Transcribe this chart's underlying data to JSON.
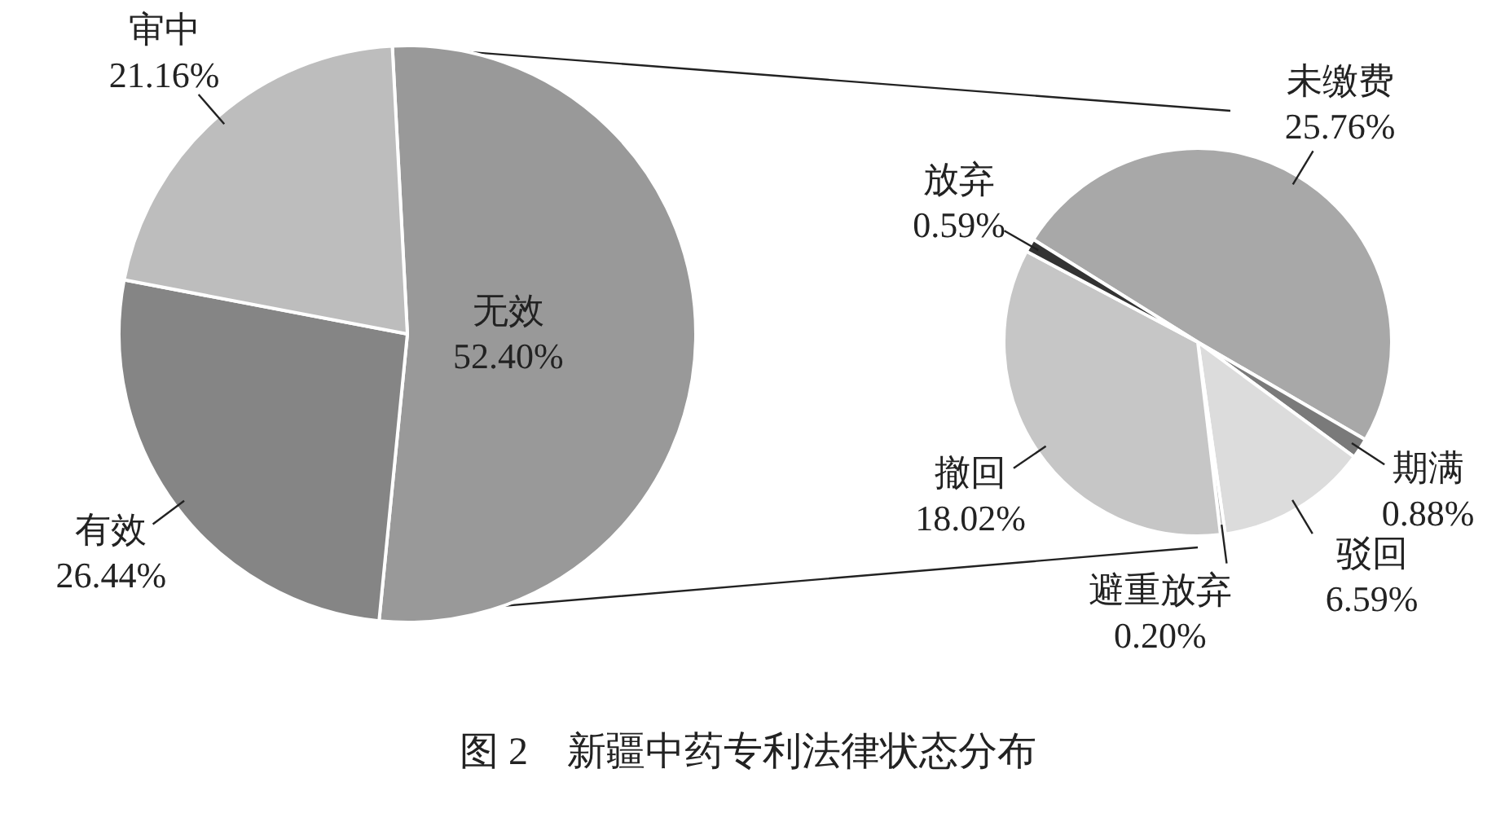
{
  "chart_data": [
    {
      "type": "pie",
      "title": "图 2　新疆中药专利法律状态分布",
      "categories": [
        "无效",
        "有效",
        "审中"
      ],
      "values": [
        52.4,
        26.44,
        21.16
      ],
      "colors": [
        "#999999",
        "#858585",
        "#bdbdbd"
      ],
      "value_labels": [
        "52.40%",
        "26.44%",
        "21.16%"
      ],
      "legend": false
    },
    {
      "type": "pie",
      "categories": [
        "未缴费",
        "期满",
        "驳回",
        "避重放弃",
        "撤回",
        "放弃"
      ],
      "values": [
        25.76,
        0.88,
        6.59,
        0.2,
        18.02,
        0.59
      ],
      "colors": [
        "#a8a8a8",
        "#7a7a7a",
        "#dcdcdc",
        "#b0b0b0",
        "#c6c6c6",
        "#333333"
      ],
      "value_labels": [
        "25.76%",
        "0.88%",
        "6.59%",
        "0.20%",
        "18.02%",
        "0.59%"
      ],
      "legend": false
    }
  ]
}
